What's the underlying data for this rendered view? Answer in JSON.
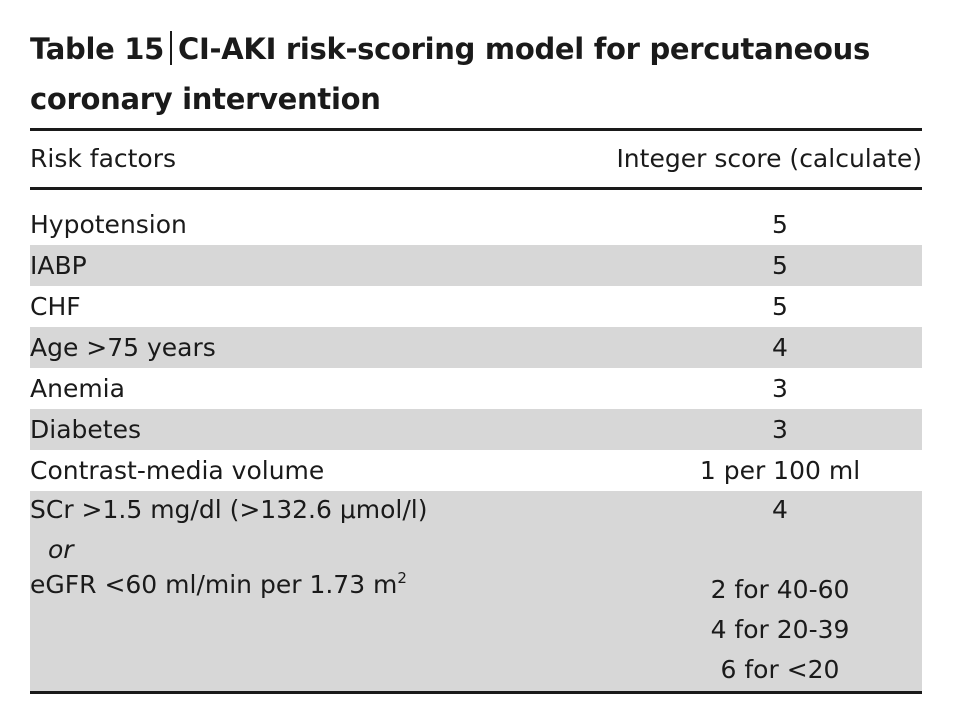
{
  "table": {
    "title_prefix": "Table 15",
    "title_main": "CI-AKI risk-scoring model for percutaneous",
    "title_line2": "coronary intervention",
    "header": {
      "col1": "Risk factors",
      "col2": "Integer score (calculate)"
    },
    "rows": [
      {
        "factor": "Hypotension",
        "score": "5",
        "shaded": false
      },
      {
        "factor": "IABP",
        "score": "5",
        "shaded": true
      },
      {
        "factor": "CHF",
        "score": "5",
        "shaded": false
      },
      {
        "factor": "Age >75 years",
        "score": "4",
        "shaded": true
      },
      {
        "factor": "Anemia",
        "score": "3",
        "shaded": false
      },
      {
        "factor": "Diabetes",
        "score": "3",
        "shaded": true
      },
      {
        "factor": "Contrast-media volume",
        "score": "1 per 100 ml",
        "shaded": false
      }
    ],
    "scr_block": {
      "line1": "SCr >1.5 mg/dl (>132.6 μmol/l)",
      "line1_score": "4",
      "or": "or",
      "line2": "eGFR <60 ml/min per 1.73 m",
      "line2_sup": "2",
      "scores": [
        "2 for 40-60",
        "4 for 20-39",
        "6 for <20"
      ]
    }
  }
}
